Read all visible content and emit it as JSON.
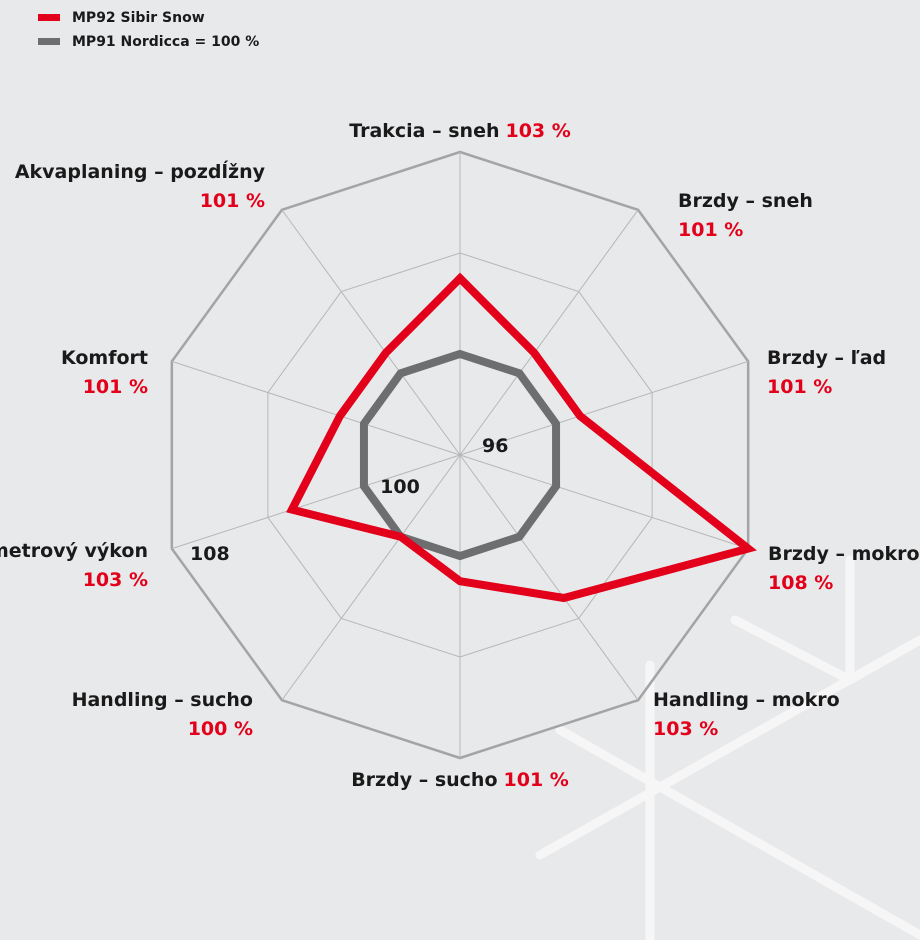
{
  "chart_data": {
    "type": "radar",
    "categories": [
      "Trakcia – sneh",
      "Brzdy – sneh",
      "Brzdy – ľad",
      "Brzdy – mokro",
      "Handling – mokro",
      "Brzdy – sucho",
      "Handling – sucho",
      "Kilometrový výkon",
      "Komfort",
      "Akvaplaning – pozdĺžny"
    ],
    "series": [
      {
        "name": "MP92 Sibir Snow",
        "color": "#e2001a",
        "values": [
          103,
          101,
          101,
          108,
          103,
          101,
          100,
          103,
          101,
          101
        ],
        "value_labels": [
          "103 %",
          "101 %",
          "101 %",
          "108 %",
          "103 %",
          "101 %",
          "100 %",
          "103 %",
          "101 %",
          "101 %"
        ]
      },
      {
        "name": "MP91 Nordicca = 100 %",
        "color": "#6d6e70",
        "values": [
          100,
          100,
          100,
          100,
          100,
          100,
          100,
          100,
          100,
          100
        ]
      }
    ],
    "ylim": [
      96,
      108
    ],
    "yticks": [
      96,
      100,
      108
    ],
    "grid_rings": [
      100,
      104,
      108
    ]
  }
}
